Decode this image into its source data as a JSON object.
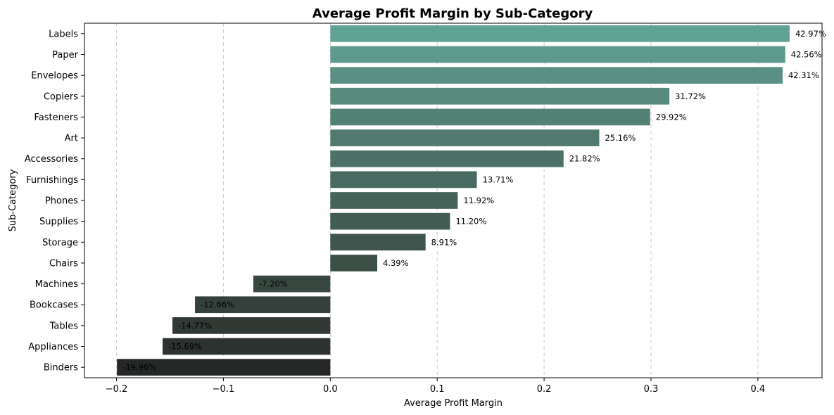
{
  "chart_data": {
    "type": "bar",
    "orientation": "horizontal",
    "title": "Average Profit Margin by Sub-Category",
    "xlabel": "Average Profit Margin",
    "ylabel": "Sub-Category",
    "xlim": [
      -0.23,
      0.46
    ],
    "xticks": [
      -0.2,
      -0.1,
      0.0,
      0.1,
      0.2,
      0.3,
      0.4
    ],
    "xtick_labels": [
      "−0.2",
      "−0.1",
      "0.0",
      "0.1",
      "0.2",
      "0.3",
      "0.4"
    ],
    "grid": "x-dashed",
    "categories": [
      "Labels",
      "Paper",
      "Envelopes",
      "Copiers",
      "Fasteners",
      "Art",
      "Accessories",
      "Furnishings",
      "Phones",
      "Supplies",
      "Storage",
      "Chairs",
      "Machines",
      "Bookcases",
      "Tables",
      "Appliances",
      "Binders"
    ],
    "values": [
      0.4297,
      0.4256,
      0.4231,
      0.3172,
      0.2992,
      0.2516,
      0.2182,
      0.1371,
      0.1192,
      0.112,
      0.0891,
      0.0439,
      -0.072,
      -0.1266,
      -0.1477,
      -0.1569,
      -0.1996
    ],
    "labels": [
      "42.97%",
      "42.56%",
      "42.31%",
      "31.72%",
      "29.92%",
      "25.16%",
      "21.82%",
      "13.71%",
      "11.92%",
      "11.20%",
      "8.91%",
      "4.39%",
      "-7.20%",
      "-12.66%",
      "-14.77%",
      "-15.69%",
      "-19.96%"
    ],
    "colors": [
      "#5fa394",
      "#5d998c",
      "#5a9084",
      "#57897d",
      "#548175",
      "#51796f",
      "#4d7167",
      "#496a61",
      "#466359",
      "#425c53",
      "#3f554d",
      "#3c4f47",
      "#384841",
      "#34403b",
      "#313935",
      "#2c322f",
      "#262828"
    ]
  }
}
